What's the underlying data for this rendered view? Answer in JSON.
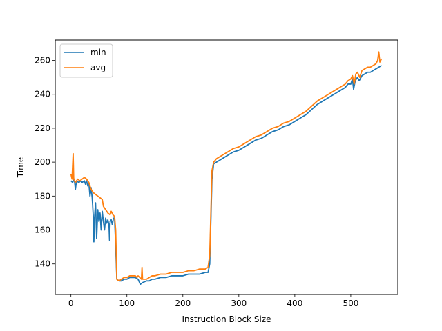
{
  "chart_data": {
    "type": "line",
    "title": "",
    "xlabel": "Instruction Block Size",
    "ylabel": "Time",
    "xlim": [
      -28,
      584
    ],
    "ylim": [
      122,
      272
    ],
    "xticks": [
      0,
      100,
      200,
      300,
      400,
      500
    ],
    "yticks": [
      140,
      160,
      180,
      200,
      220,
      240,
      260
    ],
    "grid": false,
    "legend": "top-left",
    "series": [
      {
        "name": "min",
        "color": "#1f77b4",
        "points": [
          [
            0,
            189
          ],
          [
            3,
            188
          ],
          [
            6,
            190
          ],
          [
            8,
            184
          ],
          [
            10,
            189
          ],
          [
            14,
            188
          ],
          [
            18,
            189
          ],
          [
            20,
            188
          ],
          [
            24,
            189
          ],
          [
            26,
            187
          ],
          [
            28,
            189
          ],
          [
            30,
            186
          ],
          [
            32,
            188
          ],
          [
            34,
            180
          ],
          [
            36,
            185
          ],
          [
            38,
            179
          ],
          [
            40,
            168
          ],
          [
            41,
            153
          ],
          [
            42,
            166
          ],
          [
            44,
            176
          ],
          [
            46,
            155
          ],
          [
            48,
            172
          ],
          [
            50,
            165
          ],
          [
            52,
            170
          ],
          [
            54,
            160
          ],
          [
            56,
            171
          ],
          [
            58,
            165
          ],
          [
            60,
            160
          ],
          [
            62,
            167
          ],
          [
            64,
            164
          ],
          [
            66,
            166
          ],
          [
            68,
            163
          ],
          [
            69,
            154
          ],
          [
            70,
            165
          ],
          [
            72,
            166
          ],
          [
            74,
            163
          ],
          [
            76,
            167
          ],
          [
            78,
            167
          ],
          [
            80,
            150
          ],
          [
            82,
            131
          ],
          [
            86,
            130
          ],
          [
            90,
            130
          ],
          [
            95,
            131
          ],
          [
            100,
            131
          ],
          [
            105,
            132
          ],
          [
            110,
            132
          ],
          [
            115,
            132
          ],
          [
            120,
            131
          ],
          [
            124,
            128
          ],
          [
            128,
            129
          ],
          [
            135,
            130
          ],
          [
            140,
            130
          ],
          [
            145,
            131
          ],
          [
            150,
            131
          ],
          [
            160,
            132
          ],
          [
            170,
            132
          ],
          [
            180,
            133
          ],
          [
            190,
            133
          ],
          [
            200,
            133
          ],
          [
            210,
            134
          ],
          [
            220,
            134
          ],
          [
            230,
            134
          ],
          [
            240,
            135
          ],
          [
            245,
            135
          ],
          [
            248,
            140
          ],
          [
            250,
            165
          ],
          [
            252,
            190
          ],
          [
            255,
            199
          ],
          [
            260,
            200
          ],
          [
            270,
            202
          ],
          [
            280,
            204
          ],
          [
            290,
            206
          ],
          [
            300,
            207
          ],
          [
            310,
            209
          ],
          [
            320,
            211
          ],
          [
            330,
            213
          ],
          [
            340,
            214
          ],
          [
            350,
            216
          ],
          [
            360,
            218
          ],
          [
            370,
            219
          ],
          [
            380,
            221
          ],
          [
            390,
            222
          ],
          [
            400,
            224
          ],
          [
            410,
            226
          ],
          [
            420,
            228
          ],
          [
            430,
            231
          ],
          [
            440,
            234
          ],
          [
            450,
            236
          ],
          [
            460,
            238
          ],
          [
            470,
            240
          ],
          [
            480,
            242
          ],
          [
            490,
            244
          ],
          [
            495,
            246
          ],
          [
            500,
            246
          ],
          [
            503,
            249
          ],
          [
            505,
            243
          ],
          [
            508,
            248
          ],
          [
            512,
            250
          ],
          [
            515,
            248
          ],
          [
            520,
            251
          ],
          [
            525,
            252
          ],
          [
            530,
            253
          ],
          [
            535,
            253
          ],
          [
            540,
            254
          ],
          [
            545,
            255
          ],
          [
            550,
            256
          ],
          [
            555,
            257
          ]
        ]
      },
      {
        "name": "avg",
        "color": "#ff7f0e",
        "points": [
          [
            0,
            193
          ],
          [
            2,
            190
          ],
          [
            4,
            205
          ],
          [
            5,
            190
          ],
          [
            8,
            188
          ],
          [
            12,
            190
          ],
          [
            16,
            189
          ],
          [
            20,
            190
          ],
          [
            24,
            191
          ],
          [
            28,
            190
          ],
          [
            32,
            188
          ],
          [
            34,
            186
          ],
          [
            36,
            184
          ],
          [
            40,
            182
          ],
          [
            44,
            181
          ],
          [
            48,
            180
          ],
          [
            52,
            179
          ],
          [
            56,
            178
          ],
          [
            58,
            174
          ],
          [
            62,
            172
          ],
          [
            66,
            170
          ],
          [
            70,
            169
          ],
          [
            72,
            171
          ],
          [
            75,
            169
          ],
          [
            78,
            168
          ],
          [
            80,
            160
          ],
          [
            82,
            131
          ],
          [
            86,
            130
          ],
          [
            90,
            131
          ],
          [
            95,
            132
          ],
          [
            100,
            132
          ],
          [
            105,
            133
          ],
          [
            110,
            133
          ],
          [
            115,
            133
          ],
          [
            118,
            132
          ],
          [
            120,
            133
          ],
          [
            126,
            131
          ],
          [
            127,
            138
          ],
          [
            128,
            131
          ],
          [
            135,
            131
          ],
          [
            140,
            132
          ],
          [
            145,
            133
          ],
          [
            150,
            133
          ],
          [
            160,
            134
          ],
          [
            170,
            134
          ],
          [
            180,
            135
          ],
          [
            190,
            135
          ],
          [
            200,
            135
          ],
          [
            210,
            136
          ],
          [
            220,
            136
          ],
          [
            230,
            137
          ],
          [
            240,
            137
          ],
          [
            245,
            138
          ],
          [
            248,
            145
          ],
          [
            250,
            170
          ],
          [
            252,
            195
          ],
          [
            255,
            200
          ],
          [
            260,
            202
          ],
          [
            270,
            204
          ],
          [
            280,
            206
          ],
          [
            290,
            208
          ],
          [
            300,
            209
          ],
          [
            310,
            211
          ],
          [
            320,
            213
          ],
          [
            330,
            215
          ],
          [
            340,
            216
          ],
          [
            350,
            218
          ],
          [
            360,
            220
          ],
          [
            370,
            221
          ],
          [
            380,
            223
          ],
          [
            390,
            224
          ],
          [
            400,
            226
          ],
          [
            410,
            228
          ],
          [
            420,
            230
          ],
          [
            430,
            233
          ],
          [
            440,
            236
          ],
          [
            450,
            238
          ],
          [
            460,
            240
          ],
          [
            470,
            242
          ],
          [
            480,
            244
          ],
          [
            490,
            246
          ],
          [
            495,
            248
          ],
          [
            500,
            249
          ],
          [
            503,
            251
          ],
          [
            506,
            246
          ],
          [
            509,
            252
          ],
          [
            512,
            253
          ],
          [
            516,
            250
          ],
          [
            520,
            254
          ],
          [
            525,
            255
          ],
          [
            530,
            256
          ],
          [
            535,
            256
          ],
          [
            540,
            257
          ],
          [
            545,
            258
          ],
          [
            548,
            260
          ],
          [
            550,
            265
          ],
          [
            552,
            259
          ],
          [
            555,
            261
          ]
        ]
      }
    ]
  }
}
